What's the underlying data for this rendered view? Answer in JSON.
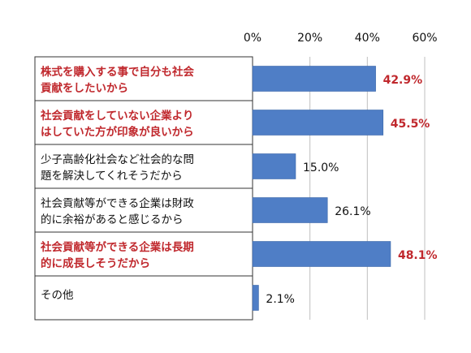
{
  "chart_data": {
    "type": "bar",
    "orientation": "horizontal",
    "xlim": [
      0,
      60
    ],
    "x_ticks": [
      "0%",
      "20%",
      "40%",
      "60%"
    ],
    "grid": true,
    "bar_color": "#4f7ec6",
    "highlight_color": "#c0282d",
    "categories": [
      {
        "line1": "株式を購入する事で自分も社会",
        "line2": "貢献をしたいから",
        "highlight": true
      },
      {
        "line1": "社会貢献をしていない企業より",
        "line2": "はしていた方が印象が良いから",
        "highlight": true
      },
      {
        "line1": "少子高齢化社会など社会的な問",
        "line2": "題を解決してくれそうだから",
        "highlight": false
      },
      {
        "line1": "社会貢献等ができる企業は財政",
        "line2": "的に余裕があると感じるから",
        "highlight": false
      },
      {
        "line1": "社会貢献等ができる企業は長期",
        "line2": "的に成長しそうだから",
        "highlight": true
      },
      {
        "line1": "その他",
        "line2": "",
        "highlight": false
      }
    ],
    "values": [
      42.9,
      45.5,
      15.0,
      26.1,
      48.1,
      2.1
    ],
    "value_labels": [
      "42.9%",
      "45.5%",
      "15.0%",
      "26.1%",
      "48.1%",
      "2.1%"
    ]
  }
}
